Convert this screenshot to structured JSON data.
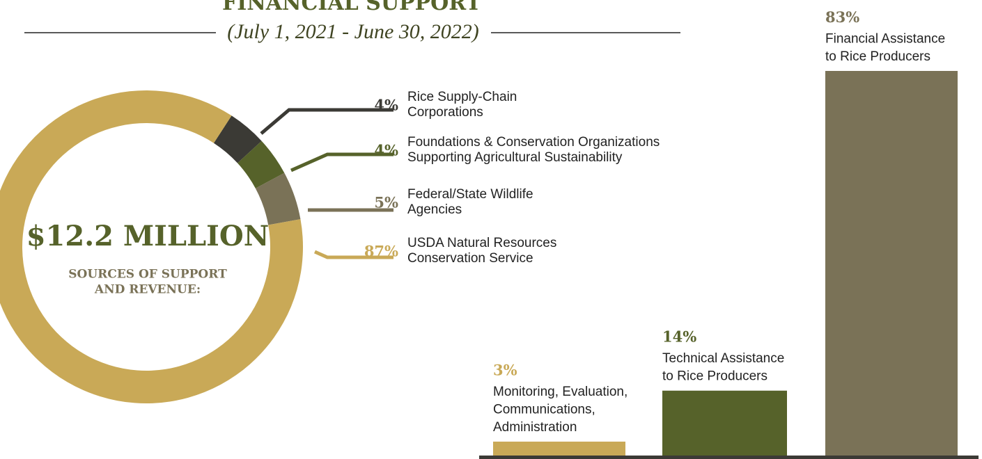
{
  "title": "FINANCIAL SUPPORT",
  "subtitle": "(July 1, 2021 - June 30, 2022)",
  "chart_data": [
    {
      "type": "donut",
      "center_title": "$12.2 MILLION",
      "center_subtitle": [
        "SOURCES OF SUPPORT",
        "AND REVENUE:"
      ],
      "categories": [
        [
          "Rice Supply-Chain",
          "Corporations"
        ],
        [
          "Foundations & Conservation Organizations",
          "Supporting Agricultural Sustainability"
        ],
        [
          "Federal/State Wildlife",
          "Agencies"
        ],
        [
          "USDA Natural Resources",
          "Conservation Service"
        ]
      ],
      "values": [
        4,
        4,
        5,
        87
      ],
      "value_labels": [
        "4%",
        "4%",
        "5%",
        "87%"
      ],
      "colors": [
        "#3b3a35",
        "#56622a",
        "#7a7257",
        "#c9a957"
      ]
    },
    {
      "type": "bar",
      "categories": [
        [
          "Monitoring, Evaluation,",
          "Communications,",
          "Administration"
        ],
        [
          "Technical Assistance",
          "to Rice Producers"
        ],
        [
          "Financial Assistance",
          "to Rice Producers"
        ]
      ],
      "values": [
        3,
        14,
        83
      ],
      "value_labels": [
        "3%",
        "14%",
        "83%"
      ],
      "colors": [
        "#c9a957",
        "#56622a",
        "#7a7257"
      ]
    }
  ]
}
